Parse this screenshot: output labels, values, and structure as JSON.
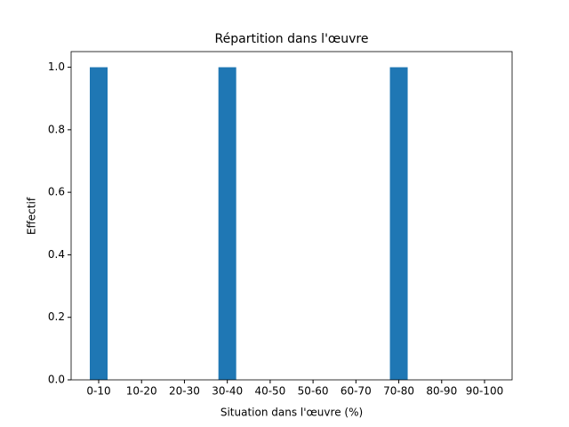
{
  "chart_data": {
    "type": "bar",
    "title": "Répartition dans l'œuvre",
    "x_label": "Situation dans l'œuvre (%)",
    "y_label": "Effectif",
    "categories": [
      "0-10",
      "10-20",
      "20-30",
      "30-40",
      "40-50",
      "50-60",
      "60-70",
      "70-80",
      "80-90",
      "90-100"
    ],
    "values": [
      1,
      0,
      0,
      1,
      0,
      0,
      0,
      1,
      0,
      0
    ],
    "color": "#1f77b4",
    "ylim": [
      0,
      1.05
    ],
    "yticks": [
      {
        "value": 0,
        "label": "0.0"
      },
      {
        "value": 0.2,
        "label": "0.2"
      },
      {
        "value": 0.4,
        "label": "0.4"
      },
      {
        "value": 0.6,
        "label": "0.6"
      },
      {
        "value": 0.8,
        "label": "0.8"
      },
      {
        "value": 1,
        "label": "1.0"
      }
    ]
  }
}
